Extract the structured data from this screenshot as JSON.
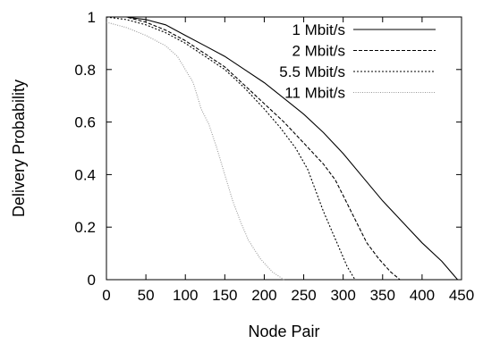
{
  "chart_data": {
    "type": "line",
    "title": "",
    "xlabel": "Node Pair",
    "ylabel": "Delivery Probability",
    "xlim": [
      0,
      450
    ],
    "ylim": [
      0,
      1
    ],
    "x_ticks": [
      0,
      50,
      100,
      150,
      200,
      250,
      300,
      350,
      400,
      450
    ],
    "x_tick_labels": [
      "0",
      "50",
      "100",
      "150",
      "200",
      "250",
      "300",
      "350",
      "400",
      "450"
    ],
    "y_ticks": [
      0,
      0.2,
      0.4,
      0.6,
      0.8,
      1
    ],
    "y_tick_labels": [
      "0",
      "0.2",
      "0.4",
      "0.6",
      "0.8",
      "1"
    ],
    "grid": false,
    "legend_position": "top-right",
    "series": [
      {
        "name": "1 Mbit/s",
        "style": "solid",
        "color": "#000000",
        "points": [
          [
            0,
            1.0
          ],
          [
            25,
            1.0
          ],
          [
            50,
            0.99
          ],
          [
            75,
            0.97
          ],
          [
            100,
            0.93
          ],
          [
            125,
            0.89
          ],
          [
            150,
            0.85
          ],
          [
            175,
            0.8
          ],
          [
            200,
            0.75
          ],
          [
            225,
            0.69
          ],
          [
            250,
            0.63
          ],
          [
            275,
            0.56
          ],
          [
            300,
            0.48
          ],
          [
            325,
            0.39
          ],
          [
            350,
            0.3
          ],
          [
            375,
            0.22
          ],
          [
            400,
            0.14
          ],
          [
            425,
            0.07
          ],
          [
            445,
            0.0
          ]
        ]
      },
      {
        "name": "2 Mbit/s",
        "style": "dashed",
        "color": "#000000",
        "points": [
          [
            0,
            1.0
          ],
          [
            25,
            1.0
          ],
          [
            50,
            0.98
          ],
          [
            75,
            0.95
          ],
          [
            100,
            0.91
          ],
          [
            125,
            0.86
          ],
          [
            150,
            0.81
          ],
          [
            175,
            0.74
          ],
          [
            200,
            0.67
          ],
          [
            225,
            0.6
          ],
          [
            250,
            0.52
          ],
          [
            275,
            0.44
          ],
          [
            290,
            0.38
          ],
          [
            300,
            0.32
          ],
          [
            310,
            0.26
          ],
          [
            320,
            0.2
          ],
          [
            330,
            0.14
          ],
          [
            345,
            0.08
          ],
          [
            360,
            0.03
          ],
          [
            372,
            0.0
          ]
        ]
      },
      {
        "name": "5.5 Mbit/s",
        "style": "dotted",
        "color": "#000000",
        "points": [
          [
            0,
            1.0
          ],
          [
            25,
            0.99
          ],
          [
            50,
            0.97
          ],
          [
            75,
            0.94
          ],
          [
            100,
            0.9
          ],
          [
            125,
            0.85
          ],
          [
            150,
            0.8
          ],
          [
            175,
            0.73
          ],
          [
            200,
            0.65
          ],
          [
            220,
            0.58
          ],
          [
            240,
            0.5
          ],
          [
            255,
            0.42
          ],
          [
            265,
            0.34
          ],
          [
            275,
            0.26
          ],
          [
            285,
            0.19
          ],
          [
            295,
            0.12
          ],
          [
            305,
            0.05
          ],
          [
            315,
            0.0
          ]
        ]
      },
      {
        "name": "11 Mbit/s",
        "style": "fine-dotted",
        "color": "#9a9a9a",
        "points": [
          [
            0,
            0.98
          ],
          [
            25,
            0.96
          ],
          [
            50,
            0.93
          ],
          [
            75,
            0.89
          ],
          [
            90,
            0.85
          ],
          [
            100,
            0.8
          ],
          [
            110,
            0.75
          ],
          [
            115,
            0.7
          ],
          [
            120,
            0.65
          ],
          [
            130,
            0.59
          ],
          [
            140,
            0.5
          ],
          [
            150,
            0.4
          ],
          [
            160,
            0.3
          ],
          [
            170,
            0.22
          ],
          [
            180,
            0.15
          ],
          [
            195,
            0.08
          ],
          [
            210,
            0.03
          ],
          [
            225,
            0.0
          ]
        ]
      }
    ]
  }
}
